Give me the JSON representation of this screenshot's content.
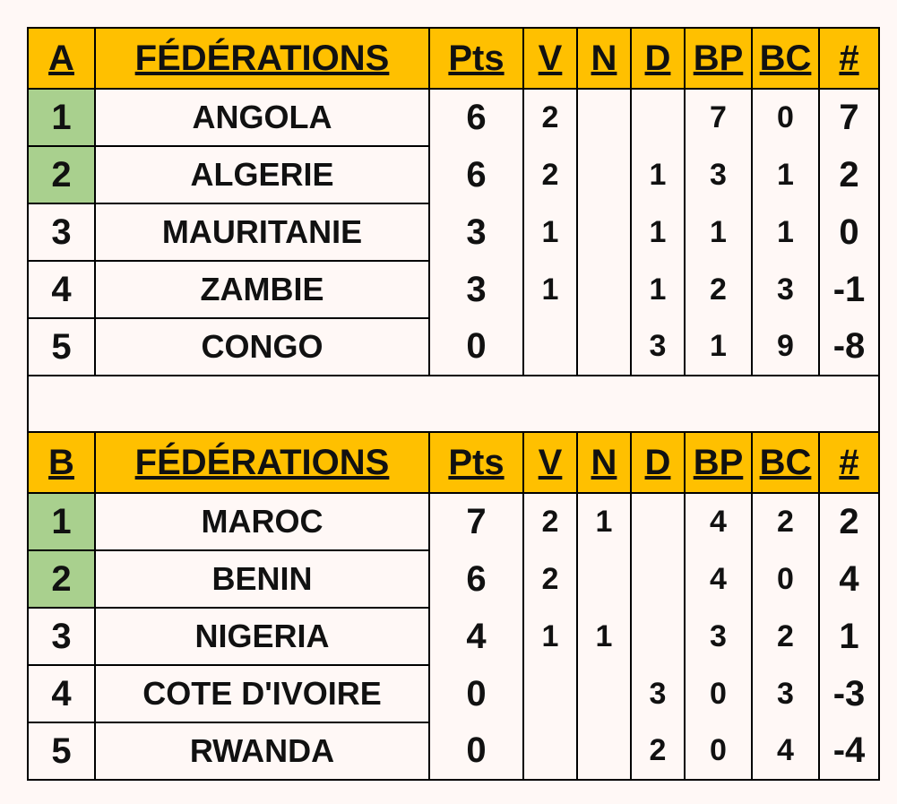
{
  "groups": [
    {
      "header": [
        "A",
        "FÉDÉRATIONS",
        "Pts",
        "V",
        "N",
        "D",
        "BP",
        "BC",
        "#"
      ],
      "rows": [
        [
          1,
          "ANGOLA",
          6,
          2,
          null,
          null,
          7,
          0,
          7
        ],
        [
          2,
          "ALGERIE",
          6,
          2,
          null,
          1,
          3,
          1,
          2
        ],
        [
          3,
          "MAURITANIE",
          3,
          1,
          null,
          1,
          1,
          1,
          0
        ],
        [
          4,
          "ZAMBIE",
          3,
          1,
          null,
          1,
          2,
          3,
          -1
        ],
        [
          5,
          "CONGO",
          0,
          null,
          null,
          3,
          1,
          9,
          -8
        ]
      ]
    },
    {
      "header": [
        "B",
        "FÉDÉRATIONS",
        "Pts",
        "V",
        "N",
        "D",
        "BP",
        "BC",
        "#"
      ],
      "rows": [
        [
          1,
          "MAROC",
          7,
          2,
          1,
          null,
          4,
          2,
          2
        ],
        [
          2,
          "BENIN",
          6,
          2,
          null,
          null,
          4,
          0,
          4
        ],
        [
          3,
          "NIGERIA",
          4,
          1,
          1,
          null,
          3,
          2,
          1
        ],
        [
          4,
          "COTE D'IVOIRE",
          0,
          null,
          null,
          3,
          0,
          3,
          -3
        ],
        [
          5,
          "RWANDA",
          0,
          null,
          null,
          2,
          0,
          4,
          -4
        ]
      ]
    }
  ]
}
